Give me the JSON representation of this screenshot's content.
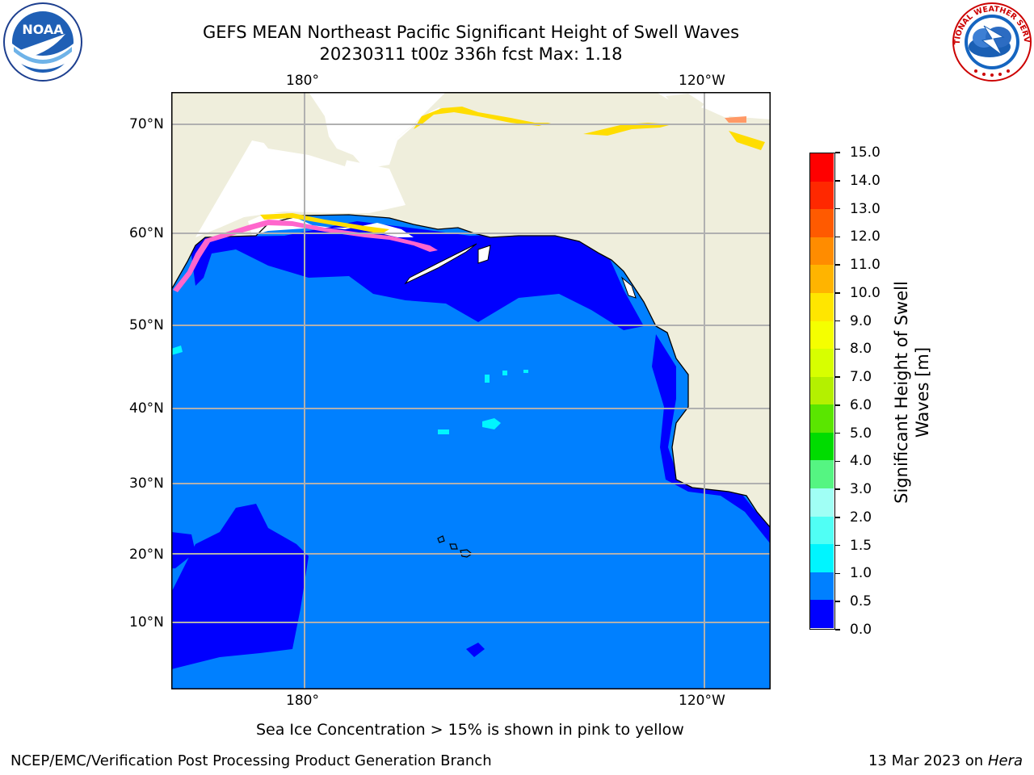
{
  "title": {
    "line1": "GEFS MEAN Northeast Pacific Significant Height of Swell Waves",
    "line2": "20230311 t00z 336h fcst   Max: 1.18"
  },
  "logos": {
    "left": {
      "text": "NOAA",
      "ring": "NATIONAL OCEANIC AND ATMOSPHERIC ADMINISTRATION · U.S. DEPARTMENT OF COMMERCE"
    },
    "right": {
      "ring": "NATIONAL WEATHER SERVICE"
    }
  },
  "map": {
    "lon_labels_top": [
      "180°",
      "120°W"
    ],
    "lon_labels_bottom": [
      "180°",
      "120°W"
    ],
    "lat_labels": [
      "70°N",
      "60°N",
      "50°N",
      "40°N",
      "30°N",
      "20°N",
      "10°N"
    ],
    "colors": {
      "land": "#efeedc",
      "ocean_low": "#0000ff",
      "ocean_mid": "#0080ff",
      "ice_pink": "#ff66cc",
      "ice_yellow": "#ffdd00"
    }
  },
  "colorbar": {
    "title_line1": "Significant Height of Swell",
    "title_line2": "Waves [m]",
    "ticks": [
      "15.0",
      "14.0",
      "13.0",
      "12.0",
      "11.0",
      "10.0",
      "9.0",
      "8.0",
      "7.0",
      "6.0",
      "5.0",
      "4.0",
      "3.0",
      "2.0",
      "1.5",
      "1.0",
      "0.5",
      "0.0"
    ],
    "colors": [
      "#ff0000",
      "#ff2800",
      "#ff5a00",
      "#ff8c00",
      "#ffb400",
      "#ffe600",
      "#f5ff00",
      "#d7ff00",
      "#b4f000",
      "#5ae600",
      "#00dc00",
      "#55f582",
      "#a0fff5",
      "#50fff5",
      "#00f5ff",
      "#0080ff",
      "#0000ff"
    ]
  },
  "notes": {
    "sea_ice": "Sea Ice Concentration > 15% is shown in pink to yellow",
    "credit": "NCEP/EMC/Verification Post Processing Product Generation Branch",
    "date": "13 Mar 2023 on",
    "machine": "Hera"
  }
}
